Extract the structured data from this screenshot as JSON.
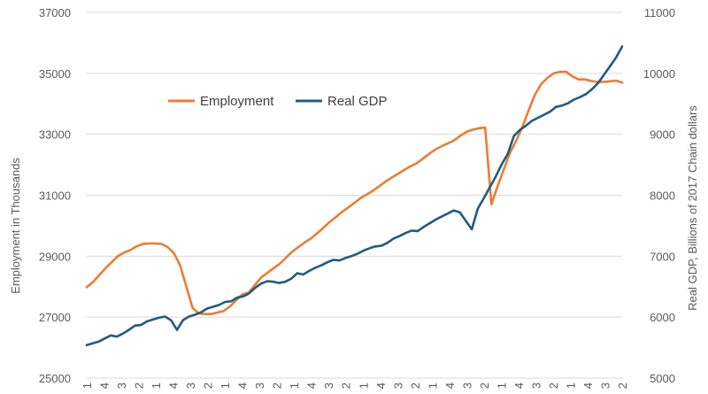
{
  "chart_data": {
    "type": "line",
    "title": "",
    "ylabel": "Employment in Thousands",
    "y2label": "Real GDP, Billions of 2017 Chain dollars",
    "ylim": [
      25000,
      37000
    ],
    "y2lim": [
      5000,
      11000
    ],
    "yticks": [
      "25000",
      "27000",
      "29000",
      "31000",
      "33000",
      "35000",
      "37000"
    ],
    "y2ticks": [
      "5000",
      "6000",
      "7000",
      "8000",
      "9000",
      "10000",
      "11000"
    ],
    "xtick_labels": [
      "1",
      "4",
      "3",
      "2",
      "1",
      "4",
      "3",
      "2",
      "1",
      "4",
      "3",
      "2",
      "1",
      "4",
      "3",
      "2",
      "1",
      "4",
      "3",
      "2",
      "1",
      "4",
      "3",
      "2",
      "1",
      "4",
      "3",
      "2",
      "1",
      "4",
      "3",
      "2"
    ],
    "legend_position": "upper-left",
    "series": [
      {
        "name": "Employment",
        "axis": "left",
        "color": "#ED7D31",
        "values": [
          27980,
          28150,
          28380,
          28600,
          28800,
          29000,
          29120,
          29200,
          29320,
          29400,
          29420,
          29420,
          29400,
          29300,
          29100,
          28700,
          28000,
          27300,
          27120,
          27100,
          27100,
          27150,
          27200,
          27350,
          27550,
          27750,
          27800,
          28050,
          28300,
          28450,
          28600,
          28750,
          28950,
          29150,
          29300,
          29450,
          29580,
          29750,
          29930,
          30120,
          30280,
          30450,
          30600,
          30750,
          30910,
          31030,
          31150,
          31300,
          31450,
          31580,
          31700,
          31830,
          31950,
          32050,
          32200,
          32360,
          32500,
          32610,
          32700,
          32800,
          32950,
          33080,
          33150,
          33200,
          33220,
          30700,
          31300,
          31850,
          32400,
          32800,
          33250,
          33800,
          34300,
          34650,
          34850,
          35000,
          35050,
          35050,
          34900,
          34800,
          34800,
          34750,
          34720,
          34720,
          34740,
          34760,
          34700
        ]
      },
      {
        "name": "Real GDP",
        "axis": "right",
        "color": "#1F5C80",
        "values": [
          5540,
          5570,
          5600,
          5650,
          5700,
          5680,
          5730,
          5790,
          5860,
          5870,
          5930,
          5960,
          5990,
          6010,
          5950,
          5790,
          5950,
          6010,
          6040,
          6080,
          6140,
          6170,
          6200,
          6250,
          6260,
          6320,
          6340,
          6390,
          6480,
          6550,
          6590,
          6580,
          6560,
          6580,
          6630,
          6720,
          6700,
          6760,
          6810,
          6850,
          6900,
          6940,
          6930,
          6970,
          7000,
          7040,
          7090,
          7130,
          7160,
          7170,
          7220,
          7290,
          7330,
          7380,
          7420,
          7410,
          7480,
          7540,
          7600,
          7650,
          7700,
          7750,
          7720,
          7580,
          7440,
          7780,
          7950,
          8130,
          8310,
          8510,
          8680,
          8970,
          9070,
          9140,
          9220,
          9270,
          9320,
          9370,
          9450,
          9470,
          9510,
          9570,
          9610,
          9660,
          9740,
          9840,
          9980,
          10120,
          10260,
          10440
        ]
      }
    ]
  }
}
